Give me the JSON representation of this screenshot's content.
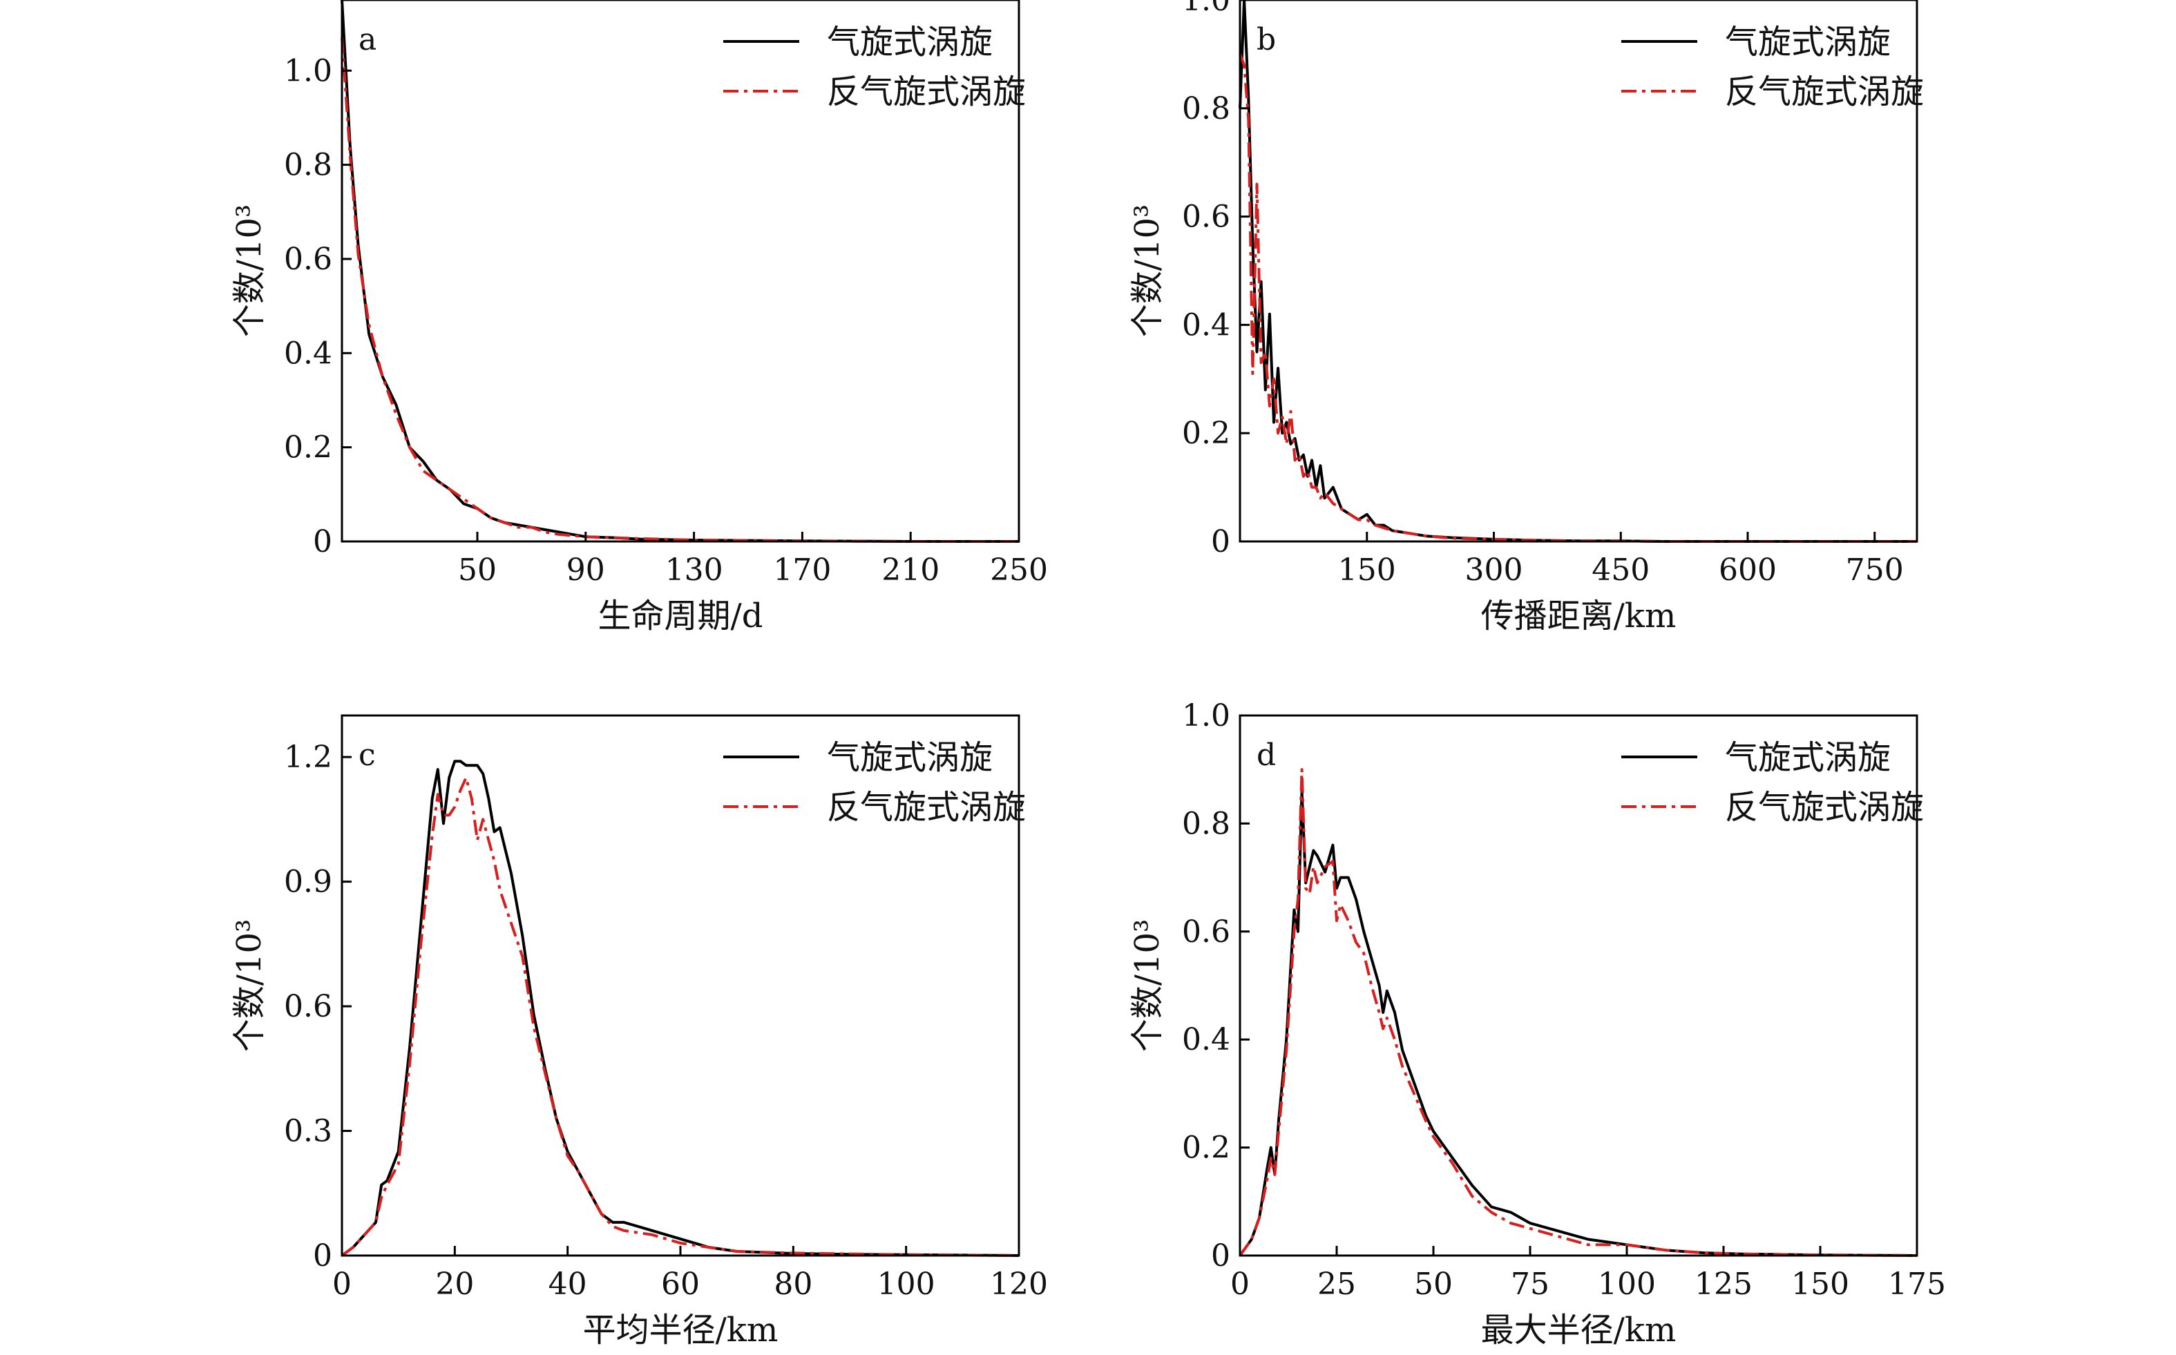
{
  "legend": {
    "cyclonic": "气旋式涡旋",
    "anticyclonic": "反气旋式涡旋"
  },
  "colors": {
    "cyclonic": "#000000",
    "anticyclonic": "#d62020"
  },
  "chart_data": [
    {
      "type": "line",
      "panel_label": "a",
      "xlabel": "生命周期/d",
      "ylabel": "个数/10³",
      "xlim": [
        0,
        250
      ],
      "ylim": [
        0,
        1.15
      ],
      "xticks": [
        50,
        90,
        130,
        170,
        210,
        250
      ],
      "xtick_labels": [
        "50",
        "90",
        "130",
        "170",
        "210",
        "250"
      ],
      "yticks": [
        0,
        0.2,
        0.4,
        0.6,
        0.8,
        1.0
      ],
      "ytick_labels": [
        "0",
        "0.2",
        "0.4",
        "0.6",
        "0.8",
        "1.0"
      ],
      "legend_position": "top-right",
      "series": [
        {
          "name": "气旋式涡旋",
          "style": "solid",
          "x": [
            0,
            3,
            6,
            10,
            15,
            20,
            25,
            30,
            35,
            40,
            45,
            50,
            55,
            60,
            65,
            70,
            75,
            80,
            90,
            100,
            110,
            130,
            150,
            170,
            210,
            250
          ],
          "y": [
            1.15,
            0.84,
            0.63,
            0.44,
            0.35,
            0.29,
            0.2,
            0.17,
            0.13,
            0.11,
            0.08,
            0.07,
            0.05,
            0.04,
            0.035,
            0.03,
            0.025,
            0.02,
            0.01,
            0.008,
            0.005,
            0.003,
            0.002,
            0.001,
            0.0,
            0.0
          ]
        },
        {
          "name": "反气旋式涡旋",
          "style": "dashdot",
          "x": [
            0,
            3,
            6,
            10,
            15,
            20,
            25,
            30,
            35,
            40,
            45,
            50,
            55,
            60,
            65,
            70,
            75,
            80,
            90,
            100,
            110,
            130,
            150,
            170,
            210,
            250
          ],
          "y": [
            1.07,
            0.82,
            0.61,
            0.46,
            0.35,
            0.27,
            0.2,
            0.15,
            0.13,
            0.11,
            0.09,
            0.07,
            0.05,
            0.04,
            0.03,
            0.03,
            0.02,
            0.015,
            0.01,
            0.008,
            0.006,
            0.003,
            0.002,
            0.001,
            0.0,
            0.0
          ]
        }
      ]
    },
    {
      "type": "line",
      "panel_label": "b",
      "xlabel": "传播距离/km",
      "ylabel": "个数/10³",
      "xlim": [
        0,
        800
      ],
      "ylim": [
        0,
        1.0
      ],
      "xticks": [
        150,
        300,
        450,
        600,
        750
      ],
      "xtick_labels": [
        "150",
        "300",
        "450",
        "600",
        "750"
      ],
      "yticks": [
        0,
        0.2,
        0.4,
        0.6,
        0.8,
        1.0
      ],
      "ytick_labels": [
        "0",
        "0.2",
        "0.4",
        "0.6",
        "0.8",
        "1.0"
      ],
      "legend_position": "top-right",
      "series": [
        {
          "name": "气旋式涡旋",
          "style": "solid",
          "x": [
            0,
            5,
            10,
            15,
            20,
            25,
            30,
            35,
            40,
            45,
            50,
            55,
            60,
            65,
            70,
            75,
            80,
            85,
            90,
            95,
            100,
            110,
            120,
            130,
            140,
            150,
            160,
            170,
            180,
            200,
            220,
            250,
            300,
            350,
            400,
            450,
            500,
            600,
            700,
            800
          ],
          "y": [
            0.8,
            1.0,
            0.82,
            0.55,
            0.35,
            0.48,
            0.28,
            0.42,
            0.22,
            0.32,
            0.2,
            0.22,
            0.18,
            0.19,
            0.15,
            0.16,
            0.12,
            0.15,
            0.1,
            0.14,
            0.08,
            0.1,
            0.06,
            0.05,
            0.04,
            0.05,
            0.03,
            0.03,
            0.02,
            0.015,
            0.01,
            0.007,
            0.004,
            0.002,
            0.001,
            0.001,
            0.0,
            0.0,
            0.0,
            0.0
          ]
        },
        {
          "name": "反气旋式涡旋",
          "style": "dashdot",
          "x": [
            0,
            5,
            10,
            15,
            20,
            25,
            30,
            35,
            40,
            45,
            50,
            55,
            60,
            65,
            70,
            75,
            80,
            85,
            90,
            95,
            100,
            110,
            120,
            130,
            140,
            150,
            160,
            170,
            180,
            200,
            220,
            250,
            300,
            350,
            400,
            450,
            500,
            600,
            700,
            800
          ],
          "y": [
            0.9,
            0.88,
            0.78,
            0.31,
            0.66,
            0.33,
            0.35,
            0.25,
            0.3,
            0.2,
            0.23,
            0.18,
            0.24,
            0.15,
            0.16,
            0.12,
            0.13,
            0.1,
            0.1,
            0.08,
            0.09,
            0.07,
            0.06,
            0.05,
            0.04,
            0.04,
            0.03,
            0.025,
            0.02,
            0.015,
            0.01,
            0.006,
            0.004,
            0.002,
            0.001,
            0.001,
            0.0,
            0.0,
            0.0,
            0.0
          ]
        }
      ]
    },
    {
      "type": "line",
      "panel_label": "c",
      "xlabel": "平均半径/km",
      "ylabel": "个数/10³",
      "xlim": [
        0,
        120
      ],
      "ylim": [
        0,
        1.3
      ],
      "xticks": [
        0,
        20,
        40,
        60,
        80,
        100,
        120
      ],
      "xtick_labels": [
        "0",
        "20",
        "40",
        "60",
        "80",
        "100",
        "120"
      ],
      "yticks": [
        0,
        0.3,
        0.6,
        0.9,
        1.2
      ],
      "ytick_labels": [
        "0",
        "0.3",
        "0.6",
        "0.9",
        "1.2"
      ],
      "legend_position": "top-right",
      "series": [
        {
          "name": "气旋式涡旋",
          "style": "solid",
          "x": [
            0,
            2,
            4,
            6,
            7,
            8,
            10,
            12,
            14,
            16,
            17,
            18,
            19,
            20,
            21,
            22,
            23,
            24,
            25,
            26,
            27,
            28,
            30,
            32,
            34,
            36,
            38,
            40,
            42,
            44,
            46,
            48,
            50,
            55,
            60,
            65,
            70,
            80,
            90,
            100,
            110,
            120
          ],
          "y": [
            0.0,
            0.02,
            0.05,
            0.08,
            0.17,
            0.18,
            0.25,
            0.5,
            0.8,
            1.1,
            1.17,
            1.04,
            1.15,
            1.19,
            1.19,
            1.18,
            1.18,
            1.18,
            1.16,
            1.1,
            1.02,
            1.03,
            0.92,
            0.77,
            0.58,
            0.45,
            0.33,
            0.25,
            0.2,
            0.15,
            0.1,
            0.08,
            0.08,
            0.06,
            0.04,
            0.02,
            0.01,
            0.005,
            0.003,
            0.002,
            0.001,
            0.0
          ]
        },
        {
          "name": "反气旋式涡旋",
          "style": "dashdot",
          "x": [
            0,
            2,
            4,
            6,
            7,
            8,
            10,
            12,
            14,
            16,
            17,
            18,
            19,
            20,
            21,
            22,
            23,
            24,
            25,
            26,
            27,
            28,
            30,
            32,
            34,
            36,
            38,
            40,
            42,
            44,
            46,
            48,
            50,
            55,
            60,
            65,
            70,
            80,
            90,
            100,
            110,
            120
          ],
          "y": [
            0.0,
            0.02,
            0.05,
            0.08,
            0.14,
            0.17,
            0.22,
            0.46,
            0.75,
            1.01,
            1.11,
            1.06,
            1.06,
            1.08,
            1.12,
            1.15,
            1.1,
            1.0,
            1.05,
            1.0,
            0.95,
            0.88,
            0.8,
            0.72,
            0.55,
            0.44,
            0.33,
            0.24,
            0.2,
            0.15,
            0.1,
            0.07,
            0.06,
            0.05,
            0.03,
            0.02,
            0.01,
            0.006,
            0.004,
            0.002,
            0.001,
            0.0
          ]
        }
      ]
    },
    {
      "type": "line",
      "panel_label": "d",
      "xlabel": "最大半径/km",
      "ylabel": "个数/10³",
      "xlim": [
        0,
        175
      ],
      "ylim": [
        0,
        1.0
      ],
      "xticks": [
        0,
        25,
        50,
        75,
        100,
        125,
        150,
        175
      ],
      "xtick_labels": [
        "0",
        "25",
        "50",
        "75",
        "100",
        "125",
        "150",
        "175"
      ],
      "yticks": [
        0,
        0.2,
        0.4,
        0.6,
        0.8,
        1.0
      ],
      "ytick_labels": [
        "0",
        "0.2",
        "0.4",
        "0.6",
        "0.8",
        "1.0"
      ],
      "legend_position": "top-right",
      "series": [
        {
          "name": "气旋式涡旋",
          "style": "solid",
          "x": [
            0,
            3,
            5,
            7,
            8,
            9,
            10,
            12,
            14,
            15,
            16,
            17,
            18,
            19,
            20,
            22,
            24,
            25,
            26,
            28,
            30,
            32,
            34,
            36,
            37,
            38,
            40,
            42,
            45,
            48,
            50,
            55,
            60,
            65,
            70,
            75,
            80,
            90,
            100,
            110,
            120,
            130,
            150,
            175
          ],
          "y": [
            0.0,
            0.03,
            0.07,
            0.16,
            0.2,
            0.15,
            0.25,
            0.4,
            0.64,
            0.6,
            0.86,
            0.69,
            0.72,
            0.75,
            0.74,
            0.71,
            0.76,
            0.68,
            0.7,
            0.7,
            0.66,
            0.6,
            0.55,
            0.5,
            0.45,
            0.49,
            0.45,
            0.38,
            0.32,
            0.26,
            0.23,
            0.18,
            0.13,
            0.09,
            0.08,
            0.06,
            0.05,
            0.03,
            0.02,
            0.01,
            0.005,
            0.003,
            0.001,
            0.0
          ]
        },
        {
          "name": "反气旋式涡旋",
          "style": "dashdot",
          "x": [
            0,
            3,
            5,
            7,
            8,
            9,
            10,
            12,
            14,
            15,
            16,
            17,
            18,
            19,
            20,
            22,
            24,
            25,
            26,
            28,
            30,
            32,
            34,
            36,
            37,
            38,
            40,
            42,
            45,
            48,
            50,
            55,
            60,
            65,
            70,
            75,
            80,
            90,
            100,
            110,
            120,
            130,
            150,
            175
          ],
          "y": [
            0.0,
            0.03,
            0.07,
            0.14,
            0.18,
            0.15,
            0.23,
            0.38,
            0.6,
            0.66,
            0.9,
            0.68,
            0.67,
            0.72,
            0.69,
            0.72,
            0.73,
            0.62,
            0.65,
            0.62,
            0.58,
            0.56,
            0.5,
            0.45,
            0.42,
            0.44,
            0.4,
            0.35,
            0.3,
            0.25,
            0.22,
            0.17,
            0.11,
            0.08,
            0.06,
            0.05,
            0.04,
            0.02,
            0.02,
            0.01,
            0.005,
            0.003,
            0.001,
            0.0
          ]
        }
      ]
    }
  ]
}
